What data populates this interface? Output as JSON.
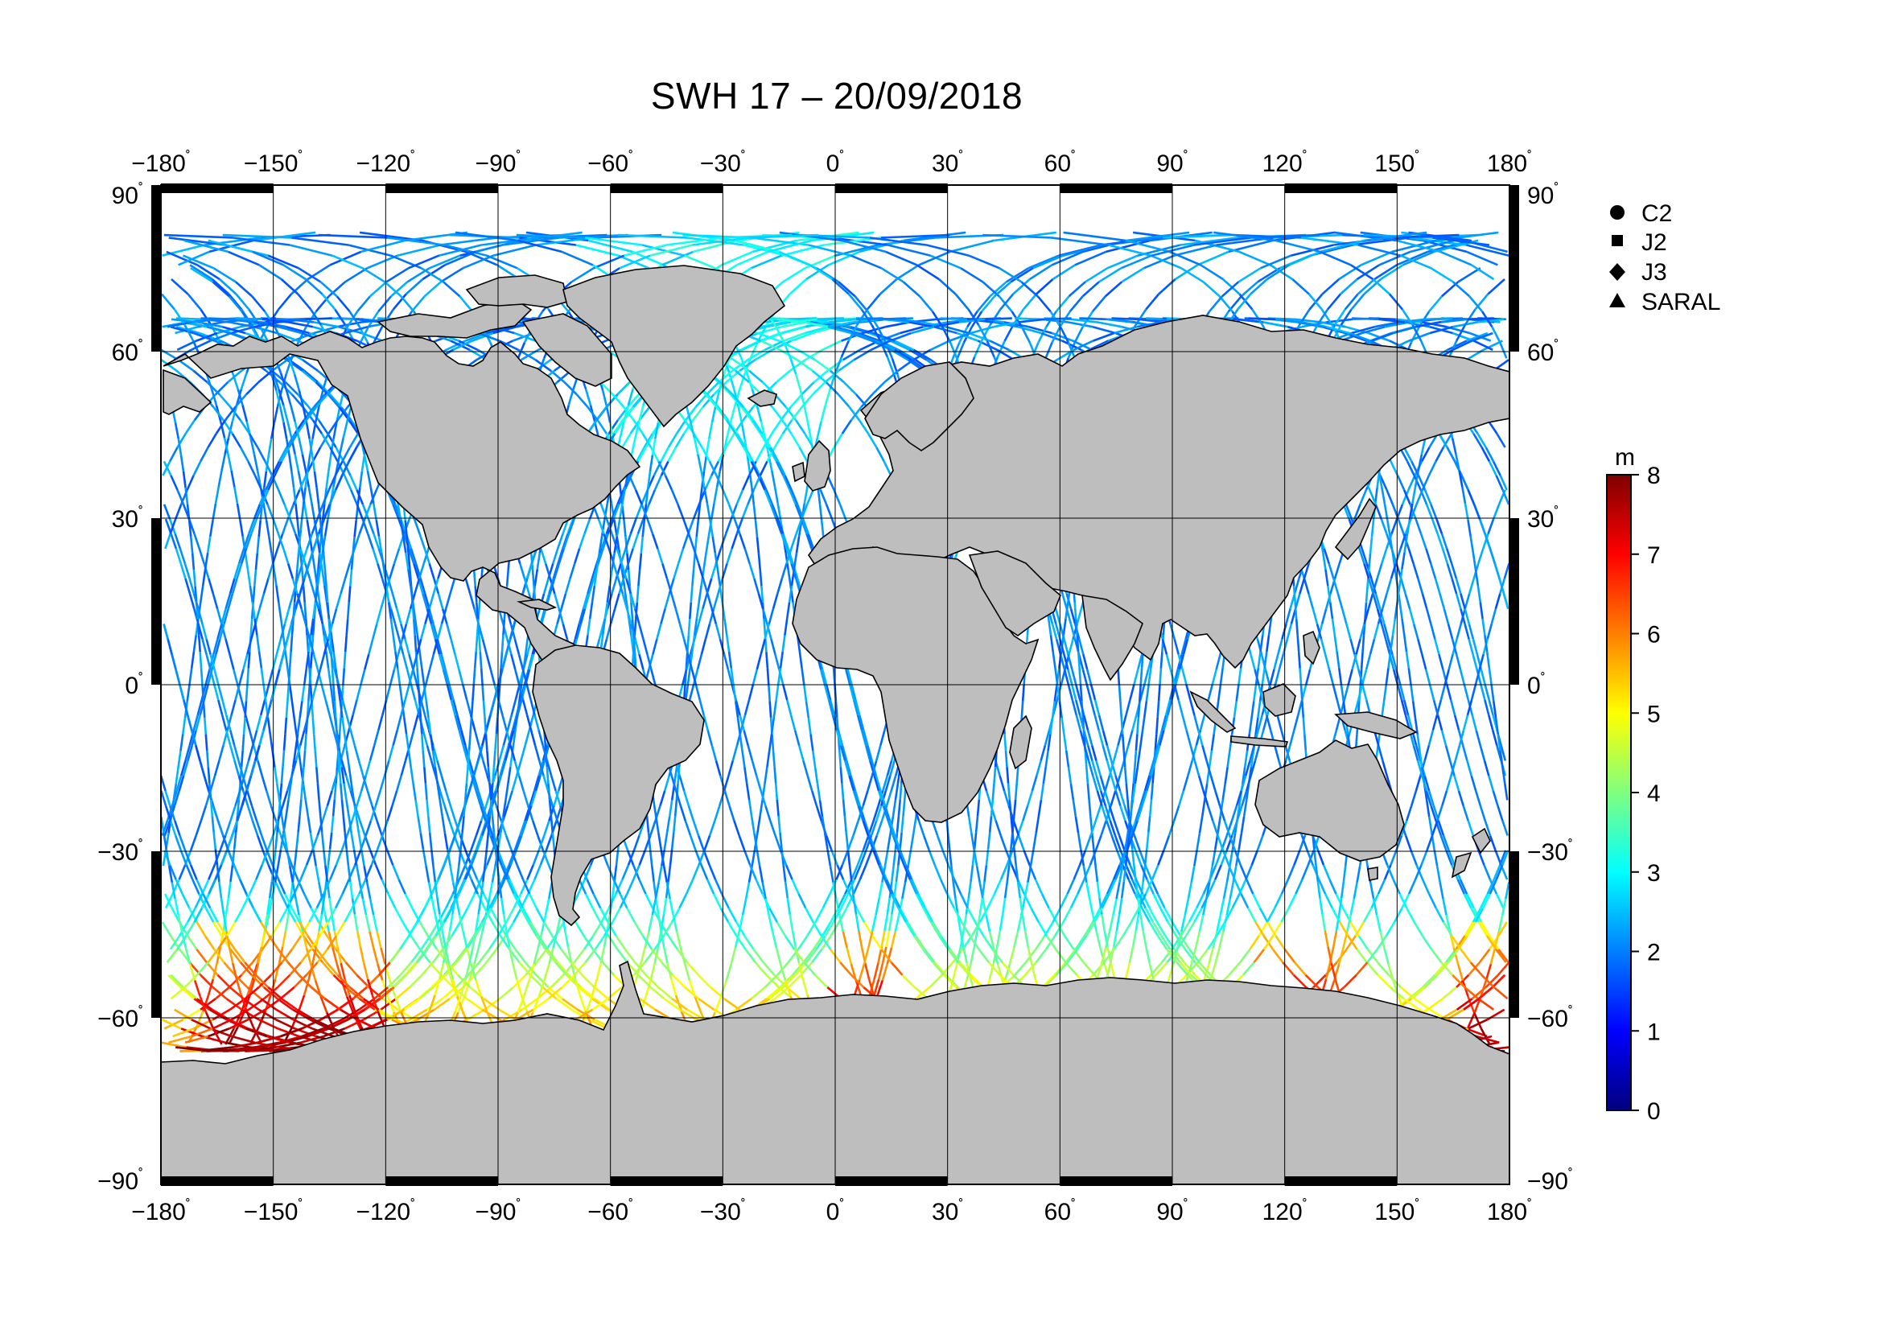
{
  "title": "SWH 17 – 20/09/2018",
  "lon_ticks": [
    "−180",
    "−150",
    "−120",
    "−90",
    "−60",
    "−30",
    "0",
    "30",
    "60",
    "90",
    "120",
    "150",
    "180"
  ],
  "lat_ticks": [
    "90",
    "60",
    "30",
    "0",
    "−30",
    "−60",
    "−90"
  ],
  "degree_symbol": "˚",
  "legend": [
    {
      "symbol": "circle",
      "label": "C2"
    },
    {
      "symbol": "square",
      "label": "J2"
    },
    {
      "symbol": "diamond",
      "label": "J3"
    },
    {
      "symbol": "triangle",
      "label": "SARAL"
    }
  ],
  "colorbar": {
    "unit": "m",
    "min": 0,
    "max": 8,
    "tick_labels": [
      "8",
      "7",
      "6",
      "5",
      "4",
      "3",
      "2",
      "1",
      "0"
    ],
    "colors": [
      "#00007f",
      "#0000ff",
      "#007fff",
      "#00ffff",
      "#7fff7f",
      "#ffff00",
      "#ff7f00",
      "#ff0000",
      "#7f0000"
    ]
  },
  "colors": {
    "land": "#bebebe",
    "coast": "#000000",
    "ocean": "#ffffff",
    "grid": "#000000"
  }
}
